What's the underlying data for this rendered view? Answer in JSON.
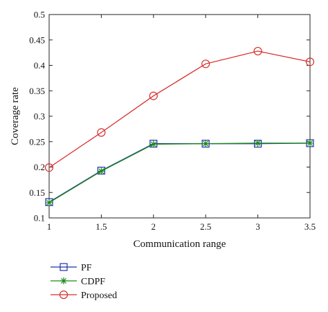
{
  "chart_data": {
    "type": "line",
    "title": "",
    "xlabel": "Communication range",
    "ylabel": "Coverage rate",
    "x": [
      1,
      1.5,
      2,
      2.5,
      3,
      3.5
    ],
    "xlim": [
      1,
      3.5
    ],
    "ylim": [
      0.1,
      0.5
    ],
    "xticks": [
      "1",
      "1.5",
      "2",
      "2.5",
      "3",
      "3.5"
    ],
    "yticks": [
      "0.1",
      "0.15",
      "0.2",
      "0.25",
      "0.3",
      "0.35",
      "0.4",
      "0.45",
      "0.5"
    ],
    "grid": false,
    "legend_position": "below-left",
    "series": [
      {
        "name": "PF",
        "color": "#1f2fa8",
        "marker": "square",
        "values": [
          0.131,
          0.193,
          0.246,
          0.246,
          0.246,
          0.247
        ]
      },
      {
        "name": "CDPF",
        "color": "#1a8a1a",
        "marker": "star",
        "values": [
          0.13,
          0.192,
          0.245,
          0.246,
          0.247,
          0.247
        ]
      },
      {
        "name": "Proposed",
        "color": "#d92b2b",
        "marker": "circle",
        "values": [
          0.199,
          0.268,
          0.34,
          0.403,
          0.428,
          0.407
        ]
      }
    ]
  }
}
